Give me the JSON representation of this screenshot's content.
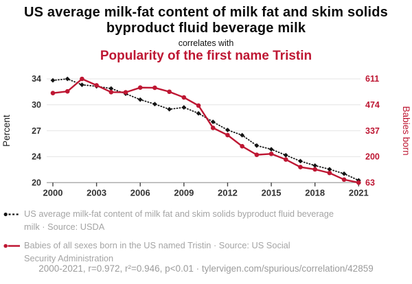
{
  "header": {
    "title": "US average milk-fat content of milk fat and skim solids byproduct fluid beverage milk",
    "connector": "correlates with",
    "subtitle": "Popularity of the first name Tristin"
  },
  "colors": {
    "accent_red": "#be1733",
    "series_black": "#141414",
    "grid_line": "#e4e4e4",
    "axis_line": "#999999",
    "tick_mark": "#444444",
    "tick_text": "#333333",
    "legend_text": "#a4a4a4",
    "footer_text": "#9b9b9b"
  },
  "chart_data": {
    "type": "line",
    "x": [
      2000,
      2001,
      2002,
      2003,
      2004,
      2005,
      2006,
      2007,
      2008,
      2009,
      2010,
      2011,
      2012,
      2013,
      2014,
      2015,
      2016,
      2017,
      2018,
      2019,
      2020,
      2021
    ],
    "series": [
      {
        "name": "US average milk-fat content of milk fat and skim solids byproduct fluid beverage milk",
        "axis": "left",
        "style": "dotted-diamond",
        "color": "#141414",
        "values": [
          33.8,
          34.0,
          33.2,
          33.0,
          32.7,
          32.0,
          31.2,
          30.6,
          29.9,
          30.15,
          29.35,
          28.2,
          27.1,
          26.4,
          25.0,
          24.5,
          23.7,
          22.9,
          22.3,
          21.8,
          21.2,
          20.3
        ]
      },
      {
        "name": "Babies of all sexes born in the US named Tristin",
        "axis": "right",
        "style": "solid-circle",
        "color": "#be1733",
        "values": [
          536,
          545,
          611,
          577,
          541,
          540,
          565,
          564,
          543,
          513,
          470,
          352,
          314,
          255,
          210,
          215,
          185,
          145,
          133,
          114,
          79,
          63
        ]
      }
    ],
    "left_axis": {
      "label": "Percent",
      "min": 20,
      "max": 34,
      "tick_values": [
        34,
        30.5,
        27,
        23.5,
        20
      ],
      "tick_labels": [
        "34",
        "30",
        "27",
        "24",
        "20"
      ]
    },
    "right_axis": {
      "label": "Babies born",
      "min": 63,
      "max": 611,
      "tick_values": [
        611,
        474,
        337,
        200,
        63
      ],
      "tick_labels": [
        "611",
        "474",
        "337",
        "200",
        "63"
      ]
    },
    "x_axis": {
      "tick_years": [
        2000,
        2003,
        2006,
        2009,
        2012,
        2015,
        2018,
        2021
      ]
    },
    "grid": "horizontal-only",
    "legend_position": "bottom-left"
  },
  "legend": {
    "items": [
      {
        "marker": "black-dot-dashed-line",
        "lines": [
          "US average milk-fat content of milk fat and skim solids byproduct fluid beverage",
          "milk · Source: USDA"
        ]
      },
      {
        "marker": "red-dot-solid-line",
        "lines": [
          "Babies of all sexes born in the US named Tristin · Source: US Social",
          "Security Administration"
        ]
      }
    ]
  },
  "footer": {
    "stats_line": "2000-2021, r=0.972, r²=0.946, p<0.01 · tylervigen.com/spurious/correlation/42859"
  }
}
